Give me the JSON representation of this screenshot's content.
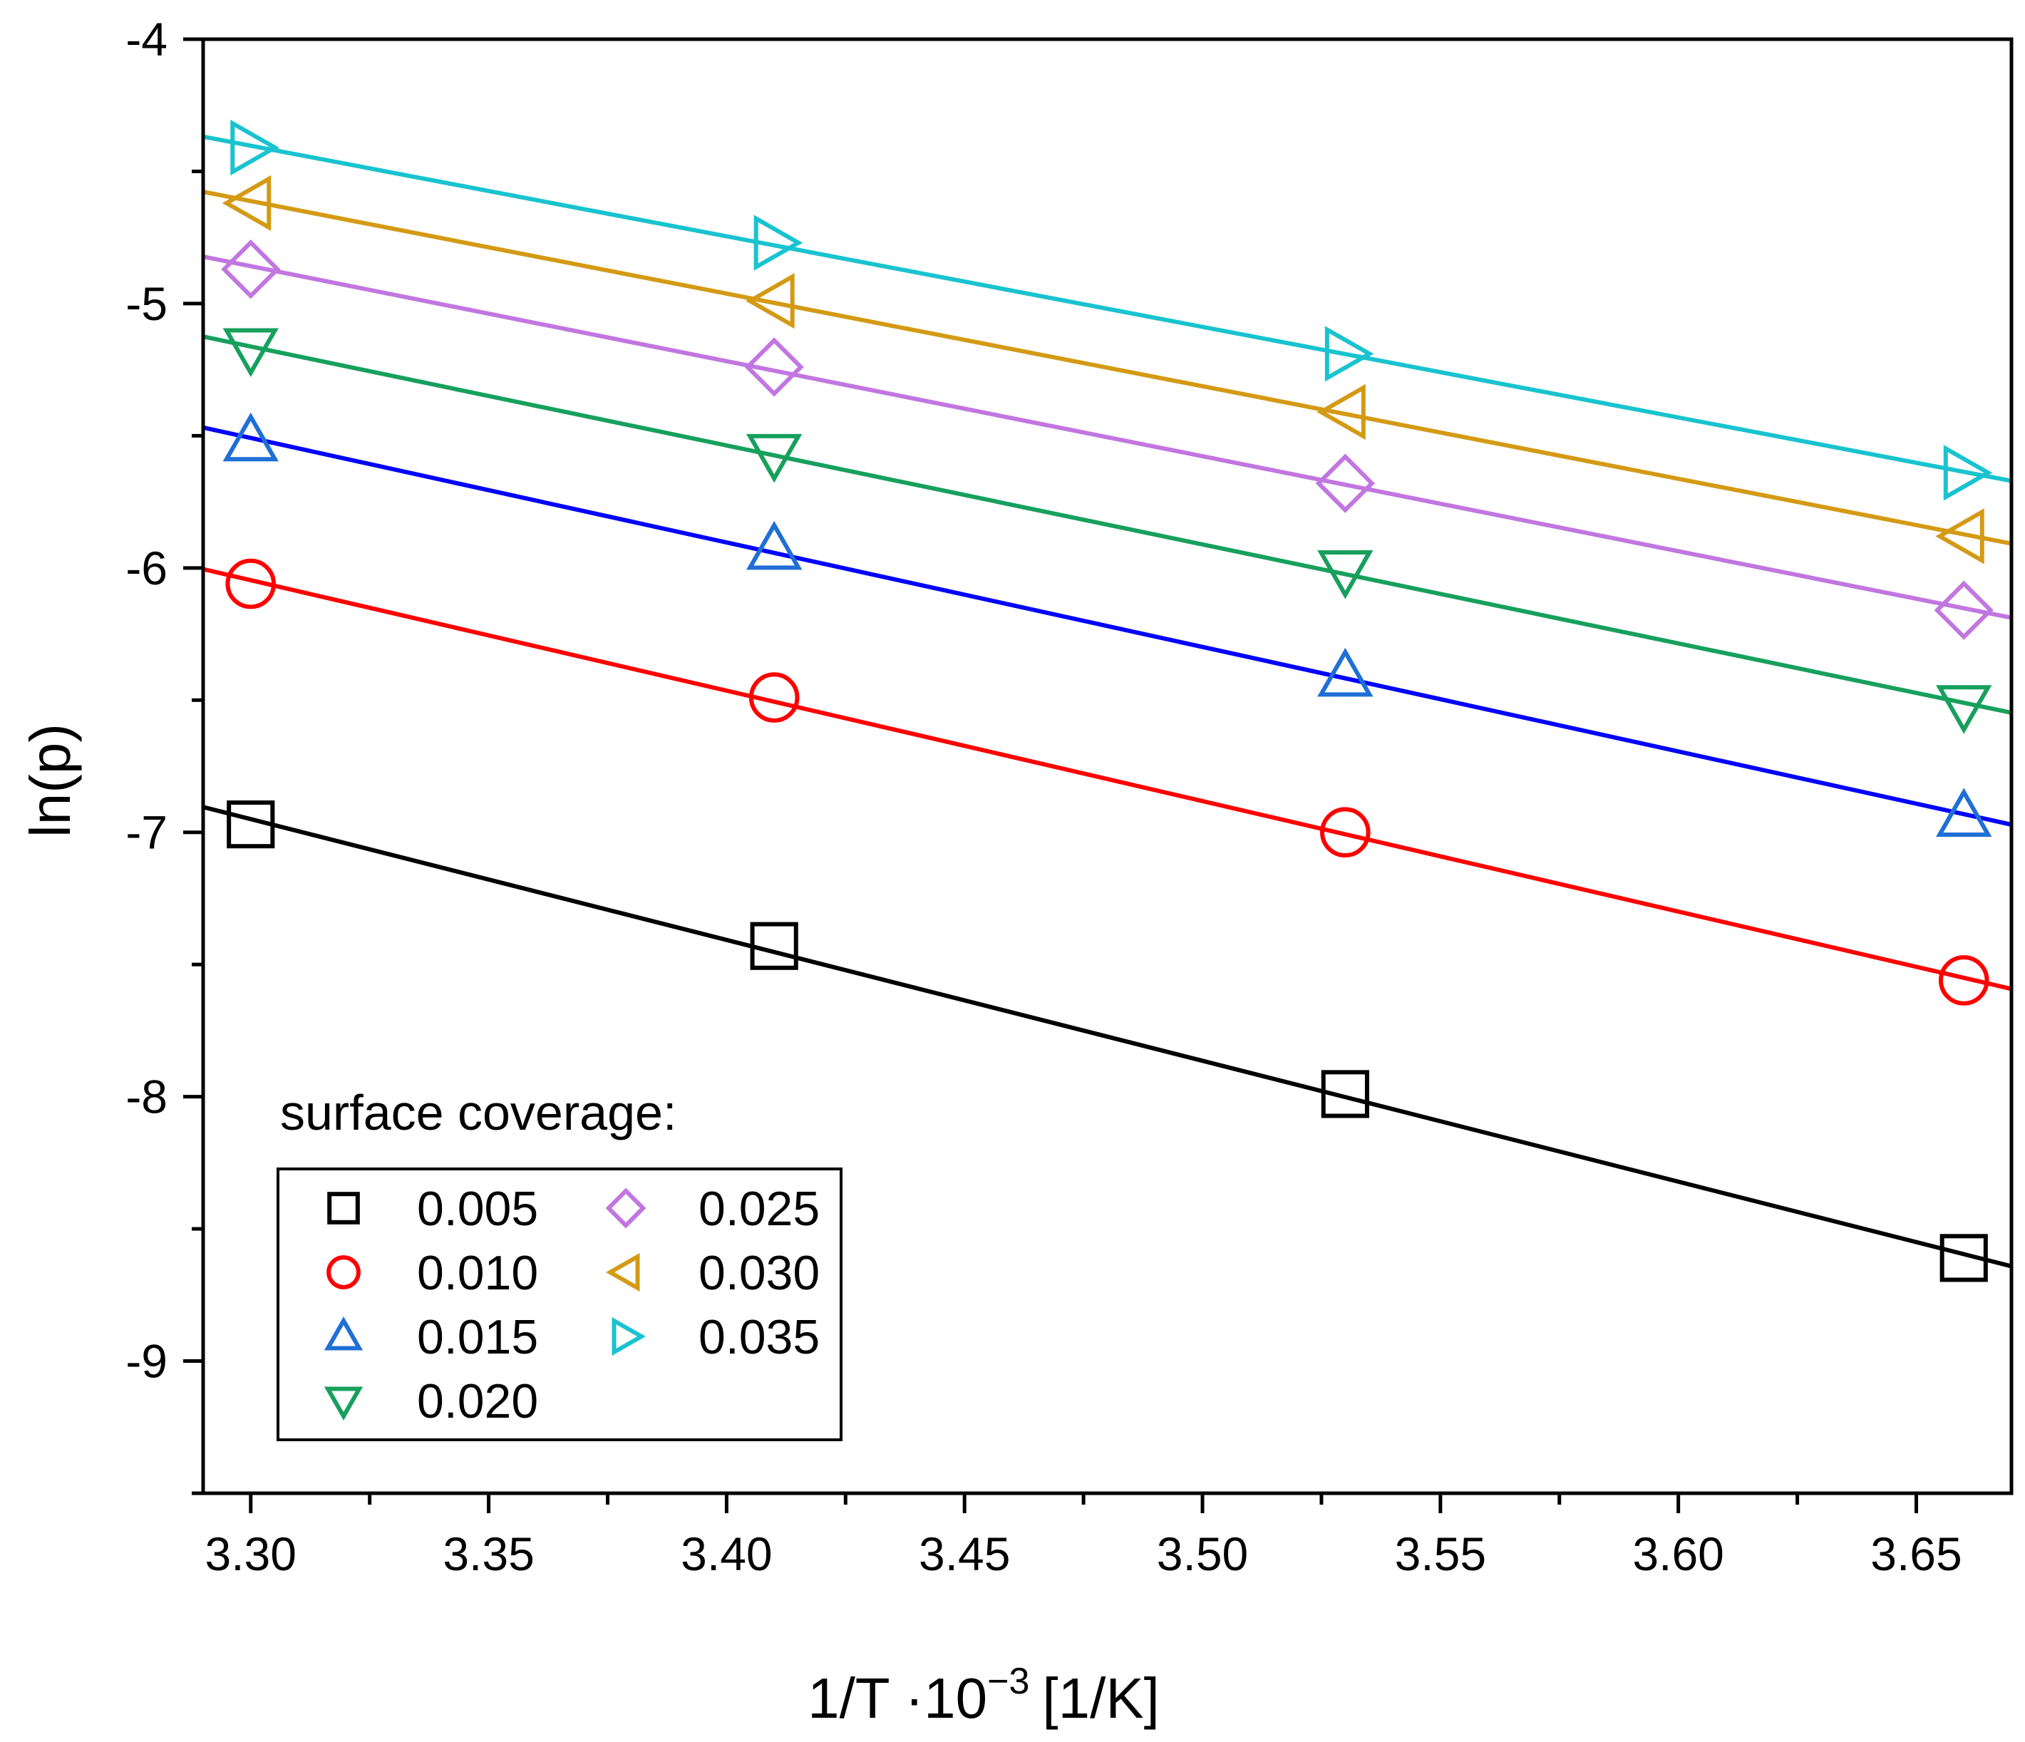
{
  "chart_data": {
    "type": "scatter",
    "title": "",
    "xlabel_main": "1/T ·10",
    "xlabel_exp": "−3",
    "xlabel_unit": "[1/K]",
    "ylabel": "ln(p)",
    "xlim": [
      3.29,
      3.67
    ],
    "ylim": [
      -9.5,
      -4
    ],
    "x_ticks": [
      3.3,
      3.35,
      3.4,
      3.45,
      3.5,
      3.55,
      3.6,
      3.65
    ],
    "x_tick_labels": [
      "3.30",
      "3.35",
      "3.40",
      "3.45",
      "3.50",
      "3.55",
      "3.60",
      "3.65"
    ],
    "y_ticks": [
      -4,
      -5,
      -6,
      -7,
      -8,
      -9
    ],
    "y_tick_labels": [
      "-4",
      "-5",
      "-6",
      "-7",
      "-8",
      "-9"
    ],
    "grid": false,
    "legend": {
      "title": "surface coverage:",
      "placement": "bottom-left",
      "columns": 2
    },
    "x": [
      3.3,
      3.41,
      3.53,
      3.66
    ],
    "series": [
      {
        "name": "0.005",
        "color": "#000000",
        "marker": "square",
        "values": [
          -6.97,
          -7.43,
          -7.99,
          -8.61
        ]
      },
      {
        "name": "0.010",
        "color": "#ff0000",
        "marker": "circle",
        "values": [
          -6.06,
          -6.49,
          -7.0,
          -7.56
        ]
      },
      {
        "name": "0.015",
        "color": "#1f6fd6",
        "marker": "triangle-up",
        "values": [
          -5.52,
          -5.93,
          -6.41,
          -6.94
        ]
      },
      {
        "name": "0.020",
        "color": "#17a05d",
        "marker": "triangle-down",
        "values": [
          -5.17,
          -5.57,
          -6.01,
          -6.52
        ]
      },
      {
        "name": "0.025",
        "color": "#c176e0",
        "marker": "diamond",
        "values": [
          -4.87,
          -5.24,
          -5.68,
          -6.16
        ]
      },
      {
        "name": "0.030",
        "color": "#d49a14",
        "marker": "triangle-left",
        "values": [
          -4.62,
          -4.99,
          -5.41,
          -5.88
        ]
      },
      {
        "name": "0.035",
        "color": "#19c3cf",
        "marker": "triangle-right",
        "values": [
          -4.41,
          -4.77,
          -5.19,
          -5.64
        ]
      }
    ],
    "fit_line_colors": [
      "#000000",
      "#ff0000",
      "#0000ff",
      "#17a05d",
      "#c176e0",
      "#d49a14",
      "#19c3cf"
    ]
  }
}
